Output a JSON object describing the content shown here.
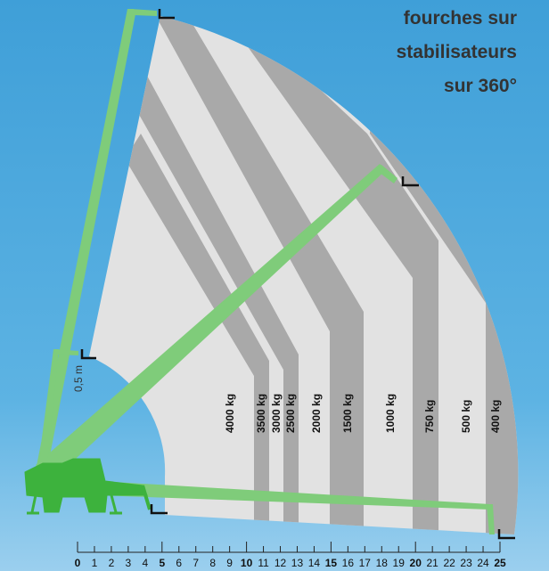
{
  "title_lines": [
    "fourches sur",
    "stabilisateurs",
    "sur 360°"
  ],
  "load_labels": [
    "4000 kg",
    "3500 kg",
    "3000 kg",
    "2500 kg",
    "2000 kg",
    "1500 kg",
    "1000 kg",
    "750 kg",
    "500 kg",
    "400 kg"
  ],
  "dimension_label": "0,5 m",
  "scale": {
    "values": [
      0,
      1,
      2,
      3,
      4,
      5,
      6,
      7,
      8,
      9,
      10,
      11,
      12,
      13,
      14,
      15,
      16,
      17,
      18,
      19,
      20,
      21,
      22,
      23,
      24,
      25
    ]
  }
}
